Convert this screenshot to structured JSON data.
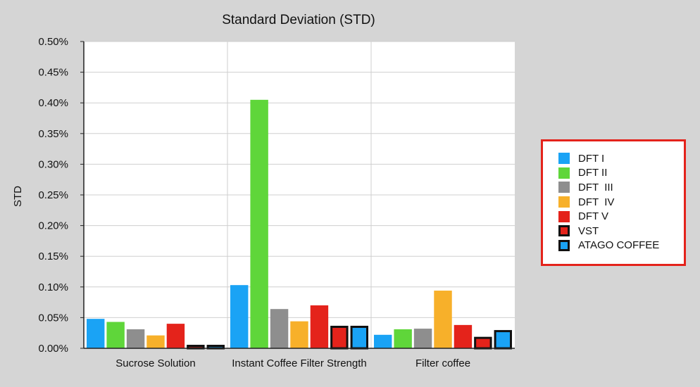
{
  "chart_data": {
    "type": "bar",
    "title": "Standard Deviation (STD)",
    "ylabel": "STD",
    "xlabel": "",
    "ylim": [
      0,
      0.5
    ],
    "y_ticks": [
      "0.00%",
      "0.05%",
      "0.10%",
      "0.15%",
      "0.20%",
      "0.25%",
      "0.30%",
      "0.35%",
      "0.40%",
      "0.45%",
      "0.50%"
    ],
    "categories": [
      "Sucrose Solution",
      "Instant Coffee Filter Strength",
      "Filter coffee"
    ],
    "grid": true,
    "legend_position": "right",
    "series": [
      {
        "name": "DFT I",
        "color": "#1aa3f5",
        "outlined": false,
        "values": [
          0.048,
          0.103,
          0.022
        ]
      },
      {
        "name": "DFT II",
        "color": "#5fd63a",
        "outlined": false,
        "values": [
          0.043,
          0.405,
          0.031
        ]
      },
      {
        "name": "DFT  III",
        "color": "#8e8e8e",
        "outlined": false,
        "values": [
          0.031,
          0.064,
          0.032
        ]
      },
      {
        "name": "DFT  IV",
        "color": "#f7b02a",
        "outlined": false,
        "values": [
          0.021,
          0.044,
          0.094
        ]
      },
      {
        "name": "DFT V",
        "color": "#e4231b",
        "outlined": false,
        "values": [
          0.04,
          0.07,
          0.038
        ]
      },
      {
        "name": "VST",
        "color": "#e4231b",
        "outlined": true,
        "values": [
          0.004,
          0.035,
          0.017
        ]
      },
      {
        "name": "ATAGO COFFEE",
        "color": "#1aa3f5",
        "outlined": true,
        "values": [
          0.004,
          0.035,
          0.028
        ]
      }
    ]
  }
}
